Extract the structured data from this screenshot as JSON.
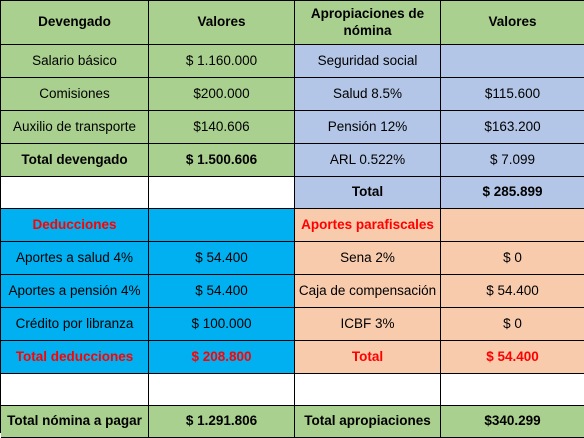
{
  "table": {
    "header": {
      "devengado": "Devengado",
      "valores": "Valores",
      "apropiaciones": "Apropiaciones de nómina",
      "valores2": "Valores"
    },
    "rows": [
      {
        "left_label": "Salario básico",
        "left_value": "$ 1.160.000",
        "right_label": "Seguridad social",
        "right_value": ""
      },
      {
        "left_label": "Comisiones",
        "left_value": "$200.000",
        "right_label": "Salud 8.5%",
        "right_value": "$115.600"
      },
      {
        "left_label": "Auxilio de transporte",
        "left_value": "$140.606",
        "right_label": "Pensión 12%",
        "right_value": "$163.200"
      },
      {
        "left_label": "Total devengado",
        "left_value": "$ 1.500.606",
        "right_label": "ARL 0.522%",
        "right_value": "$ 7.099"
      },
      {
        "left_label": "",
        "left_value": "",
        "right_label": "Total",
        "right_value": "$ 285.899"
      },
      {
        "left_label": "Deducciones",
        "left_value": "",
        "right_label": "Aportes parafiscales",
        "right_value": ""
      },
      {
        "left_label": "Aportes a salud 4%",
        "left_value": "$ 54.400",
        "right_label": "Sena 2%",
        "right_value": "$ 0"
      },
      {
        "left_label": "Aportes a pensión 4%",
        "left_value": "$ 54.400",
        "right_label": "Caja de compensación",
        "right_value": "$ 54.400"
      },
      {
        "left_label": "Crédito por libranza",
        "left_value": "$ 100.000",
        "right_label": "ICBF 3%",
        "right_value": "$ 0"
      },
      {
        "left_label": "Total deducciones",
        "left_value": "$ 208.800",
        "right_label": "Total",
        "right_value": "$ 54.400"
      },
      {
        "left_label": "",
        "left_value": "",
        "right_label": "",
        "right_value": ""
      },
      {
        "left_label": "Total nómina a pagar",
        "left_value": "$ 1.291.806",
        "right_label": "Total apropiaciones",
        "right_value": "$340.299"
      }
    ]
  },
  "colors": {
    "green": "#a9d08e",
    "blue": "#b4c6e7",
    "cyan": "#00b0f0",
    "peach": "#f8cbad",
    "red_text": "#ff0000"
  }
}
